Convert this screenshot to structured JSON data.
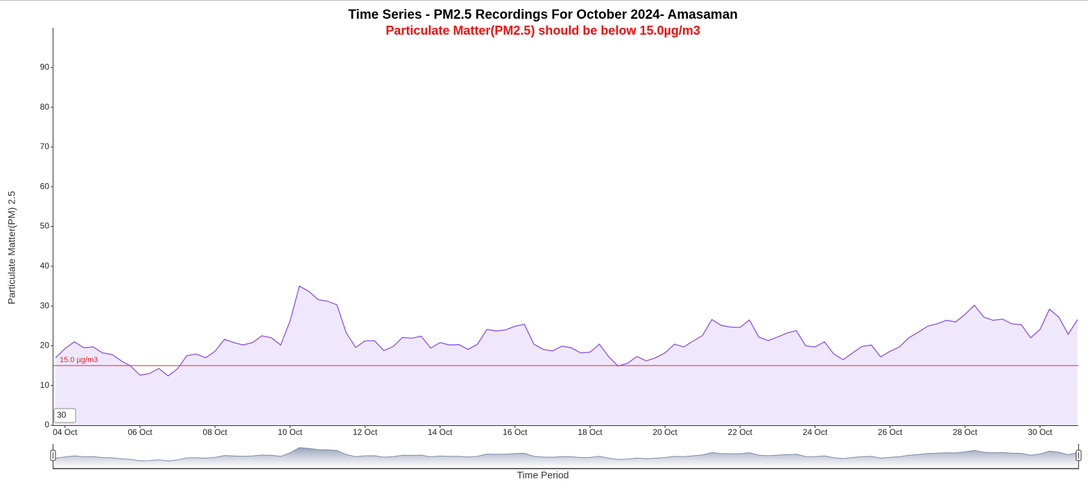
{
  "chart_data": {
    "type": "area-line",
    "title": "Time Series - PM2.5 Recordings For October 2024- Amasaman",
    "subtitle": "Particulate Matter(PM2.5) should be below 15.0µg/m3",
    "y_label": "Particulate Matter(PM) 2.5",
    "x_label": "Time Period",
    "window": "30",
    "threshold": 15,
    "threshold_label": "15.0 µg/m3",
    "threshold_color": "#ee2222",
    "color": "#8a4cf0",
    "fill": "#efe8fd",
    "brush_color": "#7d8aa6",
    "xlim": [
      3.69,
      31.02
    ],
    "ylim": [
      0,
      100
    ],
    "yticks": [
      0,
      10,
      20,
      30,
      40,
      50,
      60,
      70,
      80,
      90
    ],
    "xticks": [
      {
        "value": 4,
        "label": "04 Oct"
      },
      {
        "value": 6,
        "label": "06 Oct"
      },
      {
        "value": 8,
        "label": "08 Oct"
      },
      {
        "value": 10,
        "label": "10 Oct"
      },
      {
        "value": 12,
        "label": "12 Oct"
      },
      {
        "value": 14,
        "label": "14 Oct"
      },
      {
        "value": 16,
        "label": "16 Oct"
      },
      {
        "value": 18,
        "label": "18 Oct"
      },
      {
        "value": 20,
        "label": "20 Oct"
      },
      {
        "value": 22,
        "label": "22 Oct"
      },
      {
        "value": 24,
        "label": "24 Oct"
      },
      {
        "value": 26,
        "label": "26 Oct"
      },
      {
        "value": 28,
        "label": "28 Oct"
      },
      {
        "value": 30,
        "label": "30 Oct"
      }
    ],
    "x": [
      3.75,
      4,
      4.25,
      4.5,
      4.75,
      5,
      5.25,
      5.5,
      5.75,
      6,
      6.25,
      6.5,
      6.75,
      7,
      7.25,
      7.5,
      7.75,
      8,
      8.25,
      8.5,
      8.75,
      9,
      9.25,
      9.5,
      9.75,
      10,
      10.25,
      10.5,
      10.75,
      11,
      11.25,
      11.5,
      11.75,
      12,
      12.25,
      12.5,
      12.75,
      13,
      13.25,
      13.5,
      13.75,
      14,
      14.25,
      14.5,
      14.75,
      15,
      15.25,
      15.5,
      15.75,
      16,
      16.25,
      16.5,
      16.75,
      17,
      17.25,
      17.5,
      17.75,
      18,
      18.25,
      18.5,
      18.75,
      19,
      19.25,
      19.5,
      19.75,
      20,
      20.25,
      20.5,
      20.75,
      21,
      21.25,
      21.5,
      21.75,
      22,
      22.25,
      22.5,
      22.75,
      23,
      23.25,
      23.5,
      23.75,
      24,
      24.25,
      24.5,
      24.75,
      25,
      25.25,
      25.5,
      25.75,
      26,
      26.25,
      26.5,
      26.75,
      27,
      27.25,
      27.5,
      27.75,
      28,
      28.25,
      28.5,
      28.75,
      29,
      29.25,
      29.5,
      29.75,
      30,
      30.25,
      30.5,
      30.75,
      31
    ],
    "values": [
      17,
      19.3,
      21,
      19.5,
      19.7,
      18.2,
      17.8,
      16.2,
      14.9,
      12.6,
      13,
      14.3,
      12.4,
      14.2,
      17.5,
      17.9,
      17,
      18.6,
      21.6,
      20.8,
      20.2,
      20.8,
      22.5,
      22,
      20.2,
      26.2,
      35,
      33.7,
      31.6,
      31.2,
      30.3,
      23.2,
      19.6,
      21.2,
      21.3,
      18.8,
      19.8,
      22.1,
      21.9,
      22.4,
      19.4,
      20.8,
      20.2,
      20.3,
      19.1,
      20.4,
      24.1,
      23.7,
      24,
      24.9,
      25.4,
      20.4,
      19.1,
      18.7,
      19.9,
      19.5,
      18.2,
      18.4,
      20.4,
      17.2,
      14.9,
      15.6,
      17.3,
      16.2,
      17,
      18.2,
      20.4,
      19.7,
      21.2,
      22.6,
      26.6,
      25.1,
      24.7,
      24.6,
      26.5,
      22.2,
      21.3,
      22.2,
      23.2,
      23.8,
      20,
      19.7,
      21,
      17.9,
      16.5,
      18.2,
      19.8,
      20.2,
      17.2,
      18.6,
      19.7,
      22,
      23.4,
      24.9,
      25.5,
      26.4,
      26,
      27.9,
      30.2,
      27.2,
      26.4,
      26.7,
      25.5,
      25.3,
      22,
      24.1,
      29.2,
      27.2,
      22.9,
      26.6
    ]
  }
}
